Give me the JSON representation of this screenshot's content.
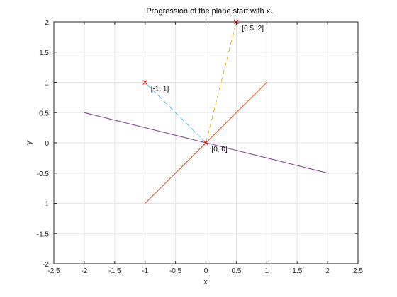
{
  "chart_data": {
    "type": "line",
    "title_main": "Progression of the plane start with x",
    "title_subscript": "1",
    "xlabel": "x",
    "ylabel": "y",
    "xlim": [
      -2.5,
      2.5
    ],
    "ylim": [
      -2,
      2
    ],
    "xticks": [
      -2.5,
      -2,
      -1.5,
      -1,
      -0.5,
      0,
      0.5,
      1,
      1.5,
      2,
      2.5
    ],
    "yticks": [
      -2,
      -1.5,
      -1,
      -0.5,
      0,
      0.5,
      1,
      1.5,
      2
    ],
    "grid": true,
    "series": [
      {
        "style": "solid",
        "color": "#D95319",
        "x": [
          -1,
          1
        ],
        "y": [
          -1,
          1
        ]
      },
      {
        "style": "solid",
        "color": "#7E2F8E",
        "x": [
          -2,
          2
        ],
        "y": [
          0.5,
          -0.5
        ]
      },
      {
        "style": "dashed",
        "color": "#4DBEEE",
        "x": [
          0,
          -1
        ],
        "y": [
          0,
          1
        ]
      },
      {
        "style": "dashed",
        "color": "#EDB120",
        "x": [
          0,
          0.5
        ],
        "y": [
          0,
          2
        ]
      }
    ],
    "markers": [
      {
        "x": -1,
        "y": 1,
        "symbol": "x",
        "color": "#FF0000"
      },
      {
        "x": 0.5,
        "y": 2,
        "symbol": "x",
        "color": "#FF0000"
      },
      {
        "x": 0,
        "y": 0,
        "symbol": "x",
        "color": "#FF0000"
      }
    ],
    "annotations": [
      {
        "text": "[-1, 1]",
        "x": -1,
        "y": 1
      },
      {
        "text": "[0.5, 2]",
        "x": 0.5,
        "y": 2
      },
      {
        "text": "[0, 0]",
        "x": 0,
        "y": 0
      }
    ],
    "colors": {
      "grid": "#E6E6E6",
      "axis": "#262626",
      "background": "#ffffff"
    }
  }
}
